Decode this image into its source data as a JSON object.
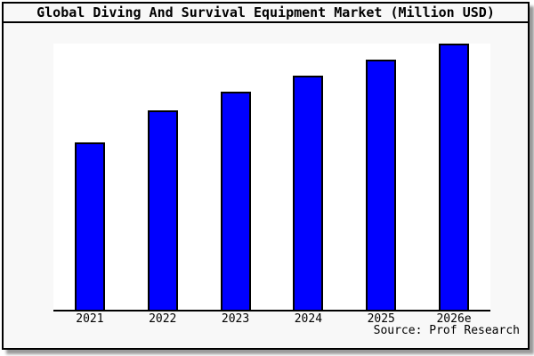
{
  "window": {
    "title": "Global Diving And Survival Equipment Market (Million USD)"
  },
  "source": {
    "label": "Source: Prof Research"
  },
  "colors": {
    "bar_fill": "#0000ff",
    "bar_border": "#000000",
    "frame_border": "#000000",
    "frame_bg": "#f8f8f8",
    "plot_bg": "#ffffff",
    "axis": "#000000",
    "shadow": "#9a9a9a",
    "text": "#000000"
  },
  "chart_data": {
    "type": "bar",
    "title": "Global Diving And Survival Equipment Market (Million USD)",
    "categories": [
      "2021",
      "2022",
      "2023",
      "2024",
      "2025",
      "2026e"
    ],
    "values": [
      63,
      75,
      82,
      88,
      94,
      100
    ],
    "value_scale": "relative-height-percent (no y-axis labels shown in chart)",
    "xlabel": "",
    "ylabel": "",
    "ylim": [
      0,
      100
    ],
    "grid": false,
    "legend": false,
    "y_axis_ticks_visible": false,
    "bar_color": "#0000ff",
    "source": "Source: Prof Research"
  }
}
